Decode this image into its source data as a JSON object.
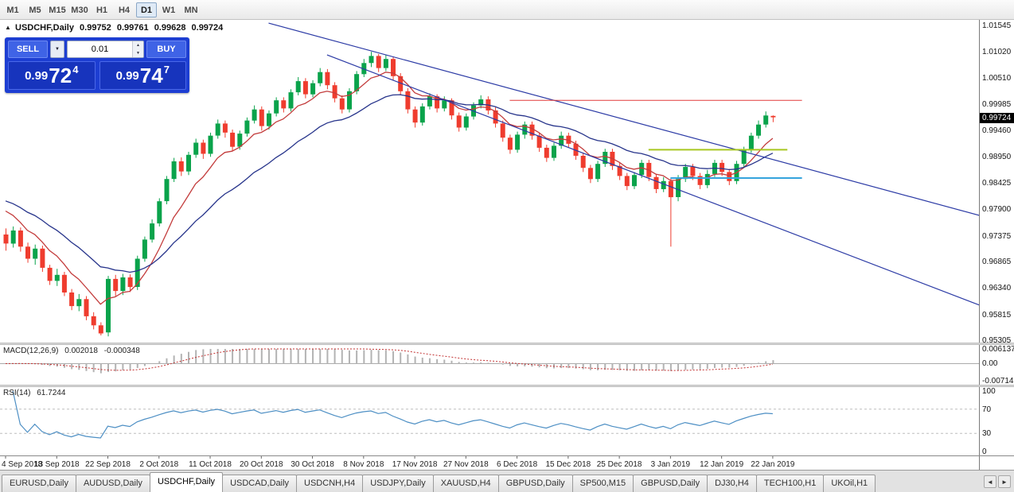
{
  "toolbar": {
    "timeframes": [
      "M1",
      "M5",
      "M15",
      "M30",
      "H1",
      "H4",
      "D1",
      "W1",
      "MN"
    ],
    "active_timeframe": "D1"
  },
  "chart_header": {
    "symbol_title": "USDCHF,Daily",
    "open": "0.99752",
    "high": "0.99761",
    "low": "0.99628",
    "close": "0.99724"
  },
  "trade_panel": {
    "sell_label": "SELL",
    "buy_label": "BUY",
    "volume_value": "0.01",
    "sell_price": {
      "prefix": "0.99",
      "big": "72",
      "sup": "4"
    },
    "buy_price": {
      "prefix": "0.99",
      "big": "74",
      "sup": "7"
    }
  },
  "icons": {
    "collapse_panel": "▲",
    "volume_dropdown": "▼",
    "spin_up": "▲",
    "spin_down": "▼",
    "tab_scroll_left": "◄",
    "tab_scroll_right": "►"
  },
  "price_axis": {
    "labels": [
      "1.01545",
      "1.01020",
      "1.00510",
      "0.99985",
      "0.99460",
      "0.98950",
      "0.98425",
      "0.97900",
      "0.97375",
      "0.96865",
      "0.96340",
      "0.95815",
      "0.95305"
    ],
    "current_price": "0.99724"
  },
  "indicators": {
    "macd": {
      "name": "MACD(12,26,9)",
      "value_main": "0.002018",
      "value_signal": "-0.000348",
      "axis_labels": [
        "0.006137",
        "0.00",
        "-0.007142"
      ],
      "params": {
        "fast": 12,
        "slow": 26,
        "signal": 9
      }
    },
    "rsi": {
      "name": "RSI(14)",
      "value": "61.7244",
      "period": 14,
      "levels": [
        70,
        30
      ],
      "axis_labels": [
        "100",
        "70",
        "30",
        "0"
      ]
    }
  },
  "time_axis": {
    "label_every": 7,
    "labels": [
      "4 Sep 2018",
      "13 Sep 2018",
      "22 Sep 2018",
      "2 Oct 2018",
      "11 Oct 2018",
      "20 Oct 2018",
      "30 Oct 2018",
      "8 Nov 2018",
      "17 Nov 2018",
      "27 Nov 2018",
      "6 Dec 2018",
      "15 Dec 2018",
      "25 Dec 2018",
      "3 Jan 2019",
      "12 Jan 2019",
      "22 Jan 2019"
    ]
  },
  "tabs": {
    "active_index": 2,
    "items": [
      "EURUSD,Daily",
      "AUDUSD,Daily",
      "USDCHF,Daily",
      "USDCAD,Daily",
      "USDCNH,H4",
      "USDJPY,Daily",
      "XAUUSD,H4",
      "GBPUSD,Daily",
      "SP500,M15",
      "GBPUSD,Daily",
      "DJ30,H4",
      "TECH100,H1",
      "UKOil,H1"
    ]
  },
  "colors": {
    "bull": "#0aa34b",
    "bear": "#ef3c2e",
    "ma_fast": "#c33c3c",
    "ma_slow": "#27348b",
    "trendline": "#2b3aa5",
    "hline_red": "#e23a3a",
    "hline_green": "#a8c820",
    "hline_blue": "#35a3dd",
    "macd_hist": "#b3b3b3",
    "macd_signal": "#c23232",
    "rsi_line": "#4d8fc4",
    "panel_blue": "#1d3ed2",
    "panel_button": "#3f63e6",
    "price_box": "#1734bd"
  },
  "chart_data": {
    "type": "candlestick",
    "symbol": "USDCHF",
    "timeframe": "Daily",
    "title": "USDCHF,Daily",
    "ylim": [
      0.95305,
      1.01545
    ],
    "candles": [
      [
        0.974,
        0.9752,
        0.9708,
        0.9722
      ],
      [
        0.9722,
        0.9756,
        0.9714,
        0.9748
      ],
      [
        0.9748,
        0.9754,
        0.9706,
        0.9716
      ],
      [
        0.9716,
        0.9724,
        0.9684,
        0.9692
      ],
      [
        0.9692,
        0.972,
        0.968,
        0.9712
      ],
      [
        0.9712,
        0.9718,
        0.9666,
        0.9674
      ],
      [
        0.9674,
        0.968,
        0.964,
        0.9648
      ],
      [
        0.9648,
        0.9672,
        0.9638,
        0.966
      ],
      [
        0.966,
        0.9666,
        0.9618,
        0.9625
      ],
      [
        0.9625,
        0.9632,
        0.959,
        0.9598
      ],
      [
        0.9598,
        0.9622,
        0.9588,
        0.9612
      ],
      [
        0.9612,
        0.9618,
        0.957,
        0.9578
      ],
      [
        0.9578,
        0.9586,
        0.9552,
        0.956
      ],
      [
        0.956,
        0.9566,
        0.954,
        0.9544
      ],
      [
        0.9546,
        0.9658,
        0.9538,
        0.9652
      ],
      [
        0.9652,
        0.966,
        0.9618,
        0.9628
      ],
      [
        0.9628,
        0.9662,
        0.962,
        0.9655
      ],
      [
        0.9655,
        0.9661,
        0.9626,
        0.9636
      ],
      [
        0.9636,
        0.9698,
        0.963,
        0.9692
      ],
      [
        0.9692,
        0.9736,
        0.9686,
        0.973
      ],
      [
        0.973,
        0.977,
        0.9724,
        0.9762
      ],
      [
        0.9762,
        0.9812,
        0.9756,
        0.9806
      ],
      [
        0.9806,
        0.9856,
        0.98,
        0.985
      ],
      [
        0.985,
        0.9892,
        0.9844,
        0.9885
      ],
      [
        0.9885,
        0.9893,
        0.9856,
        0.9865
      ],
      [
        0.9865,
        0.9904,
        0.9858,
        0.9898
      ],
      [
        0.9898,
        0.993,
        0.9892,
        0.9922
      ],
      [
        0.9922,
        0.9928,
        0.989,
        0.99
      ],
      [
        0.99,
        0.9942,
        0.9894,
        0.9936
      ],
      [
        0.9936,
        0.9968,
        0.993,
        0.996
      ],
      [
        0.996,
        0.9966,
        0.9932,
        0.9942
      ],
      [
        0.9942,
        0.9948,
        0.9906,
        0.9914
      ],
      [
        0.9914,
        0.9946,
        0.9908,
        0.994
      ],
      [
        0.994,
        0.9972,
        0.9934,
        0.9966
      ],
      [
        0.9966,
        0.9996,
        0.996,
        0.9988
      ],
      [
        0.9988,
        0.9994,
        0.9946,
        0.9955
      ],
      [
        0.9955,
        0.9986,
        0.9948,
        0.998
      ],
      [
        0.998,
        1.0012,
        0.9974,
        1.0006
      ],
      [
        1.0006,
        1.0012,
        0.9982,
        0.999
      ],
      [
        0.999,
        1.0028,
        0.9984,
        1.0022
      ],
      [
        1.0022,
        1.0052,
        1.0016,
        1.0044
      ],
      [
        1.0044,
        1.005,
        1.001,
        1.0018
      ],
      [
        1.0018,
        1.0046,
        1.0012,
        1.004
      ],
      [
        1.004,
        1.007,
        1.0034,
        1.0062
      ],
      [
        1.0062,
        1.0068,
        1.0028,
        1.0036
      ],
      [
        1.0036,
        1.0042,
        1.0002,
        1.001
      ],
      [
        1.001,
        1.0016,
        0.998,
        0.9988
      ],
      [
        0.9988,
        1.003,
        0.9982,
        1.0024
      ],
      [
        1.0024,
        1.0064,
        1.0018,
        1.0058
      ],
      [
        1.0058,
        1.0088,
        1.0052,
        1.008
      ],
      [
        1.008,
        1.0102,
        1.0072,
        1.0094
      ],
      [
        1.0094,
        1.0098,
        1.0062,
        1.007
      ],
      [
        1.007,
        1.0096,
        1.0064,
        1.0088
      ],
      [
        1.0088,
        1.0092,
        1.0046,
        1.0054
      ],
      [
        1.0054,
        1.006,
        1.0016,
        1.0024
      ],
      [
        1.0024,
        1.003,
        0.998,
        0.9988
      ],
      [
        0.9988,
        0.9994,
        0.9952,
        0.9962
      ],
      [
        0.9962,
        1.0,
        0.9956,
        0.9994
      ],
      [
        0.9994,
        1.002,
        0.9988,
        1.0014
      ],
      [
        1.0014,
        1.0018,
        0.9982,
        0.999
      ],
      [
        0.999,
        1.0014,
        0.9984,
        1.0006
      ],
      [
        1.0006,
        1.001,
        0.9968,
        0.9976
      ],
      [
        0.9976,
        0.9982,
        0.9944,
        0.9952
      ],
      [
        0.9952,
        0.998,
        0.9946,
        0.9974
      ],
      [
        0.9974,
        1.0002,
        0.9968,
        0.9996
      ],
      [
        0.9996,
        1.0016,
        0.999,
        1.0008
      ],
      [
        1.0008,
        1.0014,
        0.9978,
        0.9986
      ],
      [
        0.9986,
        0.9992,
        0.9952,
        0.996
      ],
      [
        0.996,
        0.9966,
        0.9924,
        0.9932
      ],
      [
        0.9932,
        0.9938,
        0.99,
        0.9908
      ],
      [
        0.9908,
        0.9944,
        0.9902,
        0.9938
      ],
      [
        0.9938,
        0.9964,
        0.993,
        0.9958
      ],
      [
        0.9958,
        0.9964,
        0.9928,
        0.9936
      ],
      [
        0.9936,
        0.9942,
        0.9904,
        0.9912
      ],
      [
        0.9912,
        0.9918,
        0.9884,
        0.9892
      ],
      [
        0.9892,
        0.9922,
        0.9886,
        0.9916
      ],
      [
        0.9916,
        0.9944,
        0.991,
        0.9936
      ],
      [
        0.9936,
        0.9942,
        0.9912,
        0.992
      ],
      [
        0.992,
        0.9926,
        0.9888,
        0.9896
      ],
      [
        0.9896,
        0.9902,
        0.9864,
        0.9872
      ],
      [
        0.9872,
        0.9878,
        0.9842,
        0.985
      ],
      [
        0.985,
        0.9886,
        0.9844,
        0.988
      ],
      [
        0.988,
        0.991,
        0.9874,
        0.9904
      ],
      [
        0.9904,
        0.991,
        0.9868,
        0.9876
      ],
      [
        0.9876,
        0.9882,
        0.9848,
        0.9856
      ],
      [
        0.9856,
        0.9862,
        0.9828,
        0.9836
      ],
      [
        0.9836,
        0.9864,
        0.983,
        0.9858
      ],
      [
        0.9858,
        0.9888,
        0.9852,
        0.9882
      ],
      [
        0.9882,
        0.9888,
        0.9846,
        0.9854
      ],
      [
        0.9854,
        0.986,
        0.9822,
        0.983
      ],
      [
        0.983,
        0.9854,
        0.9824,
        0.9846
      ],
      [
        0.9846,
        0.9852,
        0.9716,
        0.9814
      ],
      [
        0.9814,
        0.9858,
        0.9806,
        0.985
      ],
      [
        0.985,
        0.988,
        0.9844,
        0.9874
      ],
      [
        0.9874,
        0.988,
        0.9848,
        0.9856
      ],
      [
        0.9856,
        0.9862,
        0.983,
        0.9838
      ],
      [
        0.9838,
        0.9868,
        0.9832,
        0.986
      ],
      [
        0.986,
        0.9888,
        0.9854,
        0.9882
      ],
      [
        0.9882,
        0.9888,
        0.9856,
        0.9864
      ],
      [
        0.9864,
        0.987,
        0.9838,
        0.9846
      ],
      [
        0.9846,
        0.9886,
        0.984,
        0.988
      ],
      [
        0.988,
        0.9914,
        0.9874,
        0.9908
      ],
      [
        0.9908,
        0.9942,
        0.9902,
        0.9936
      ],
      [
        0.9936,
        0.9966,
        0.993,
        0.9958
      ],
      [
        0.9958,
        0.9984,
        0.9952,
        0.9976
      ],
      [
        0.99752,
        0.99761,
        0.99628,
        0.99724
      ]
    ],
    "moving_averages": [
      {
        "type": "ema",
        "period": 8,
        "seed": 0.9805,
        "color_key": "ma_fast"
      },
      {
        "type": "ema",
        "period": 21,
        "seed": 0.9815,
        "color_key": "ma_slow"
      }
    ],
    "annotations": {
      "hlines": [
        {
          "price": 1.0006,
          "from_bar": 69,
          "to_bar": 109,
          "color_key": "hline_red",
          "width": 1
        },
        {
          "price": 0.9908,
          "from_bar": 88,
          "to_bar": 107,
          "color_key": "hline_green",
          "width": 2
        },
        {
          "price": 0.9852,
          "from_bar": 91,
          "to_bar": 109,
          "color_key": "hline_blue",
          "width": 2
        }
      ],
      "trendlines": [
        {
          "from": [
            36,
            1.0159
          ],
          "to": [
            134,
            0.9775
          ],
          "color_key": "trendline"
        },
        {
          "from": [
            44,
            1.0096
          ],
          "to": [
            134,
            0.9596
          ],
          "color_key": "trendline"
        }
      ]
    }
  }
}
